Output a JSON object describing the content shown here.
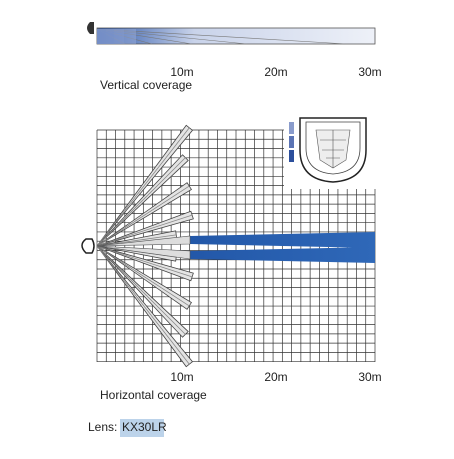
{
  "vertical": {
    "distance_labels": [
      "10m",
      "20m",
      "30m"
    ],
    "caption": "Vertical coverage"
  },
  "horizontal": {
    "distance_labels": [
      "10m",
      "20m",
      "30m"
    ],
    "caption": "Horizontal coverage"
  },
  "lens": {
    "label": "Lens:",
    "value": "KX30LR"
  }
}
